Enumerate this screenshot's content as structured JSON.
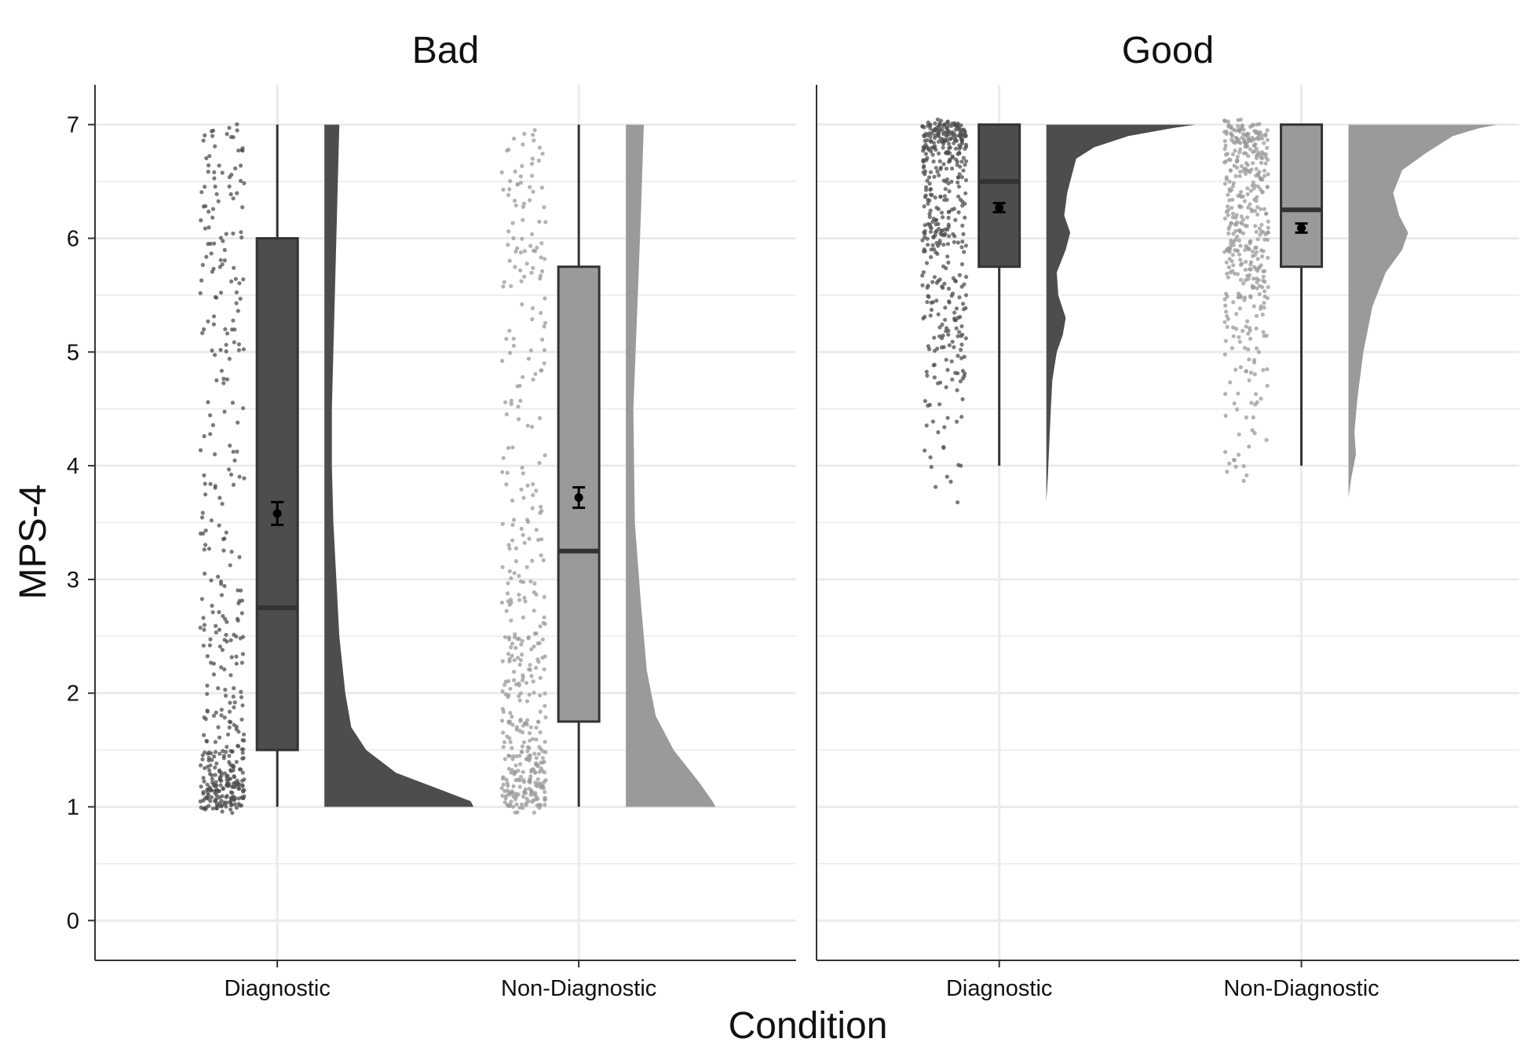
{
  "chart_data": {
    "type": "raincloud",
    "xlabel": "Condition",
    "ylabel": "MPS-4",
    "ylim": [
      -0.35,
      7.35
    ],
    "y_ticks": [
      0,
      1,
      2,
      3,
      4,
      5,
      6,
      7
    ],
    "categories": [
      "Diagnostic",
      "Non-Diagnostic"
    ],
    "grid": "on",
    "colors": {
      "Diagnostic": "#4d4d4d",
      "Non-Diagnostic": "#9a9a9a",
      "mean": "#000000",
      "grid": "#ebebeb"
    },
    "facets": [
      {
        "name": "Bad",
        "groups": [
          {
            "category": "Diagnostic",
            "box": {
              "min": 1,
              "q1": 1.5,
              "median": 2.75,
              "q3": 6,
              "max": 7
            },
            "mean": 3.58,
            "mean_ci": [
              3.48,
              3.68
            ],
            "density": [
              [
                1,
                1.0
              ],
              [
                1.05,
                0.98
              ],
              [
                1.15,
                0.78
              ],
              [
                1.3,
                0.48
              ],
              [
                1.5,
                0.28
              ],
              [
                1.7,
                0.18
              ],
              [
                2,
                0.14
              ],
              [
                2.5,
                0.1
              ],
              [
                3,
                0.08
              ],
              [
                3.5,
                0.06
              ],
              [
                4,
                0.05
              ],
              [
                4.5,
                0.05
              ],
              [
                5,
                0.06
              ],
              [
                5.5,
                0.07
              ],
              [
                6,
                0.08
              ],
              [
                6.5,
                0.09
              ],
              [
                7,
                0.1
              ]
            ]
          },
          {
            "category": "Non-Diagnostic",
            "box": {
              "min": 1,
              "q1": 1.75,
              "median": 3.25,
              "q3": 5.75,
              "max": 7
            },
            "mean": 3.72,
            "mean_ci": [
              3.63,
              3.81
            ],
            "density": [
              [
                1,
                0.6
              ],
              [
                1.05,
                0.58
              ],
              [
                1.2,
                0.5
              ],
              [
                1.5,
                0.32
              ],
              [
                1.8,
                0.2
              ],
              [
                2.2,
                0.14
              ],
              [
                2.8,
                0.1
              ],
              [
                3.5,
                0.06
              ],
              [
                4.5,
                0.05
              ],
              [
                5.5,
                0.08
              ],
              [
                6.2,
                0.1
              ],
              [
                7,
                0.12
              ]
            ]
          }
        ]
      },
      {
        "name": "Good",
        "groups": [
          {
            "category": "Diagnostic",
            "box": {
              "min": 4,
              "q1": 5.75,
              "median": 6.5,
              "q3": 7,
              "max": 7
            },
            "mean": 6.27,
            "mean_ci": [
              6.23,
              6.31
            ],
            "density": [
              [
                3.68,
                0
              ],
              [
                3.9,
                0.01
              ],
              [
                4.2,
                0.02
              ],
              [
                4.5,
                0.03
              ],
              [
                4.75,
                0.04
              ],
              [
                5,
                0.07
              ],
              [
                5.15,
                0.11
              ],
              [
                5.3,
                0.13
              ],
              [
                5.5,
                0.08
              ],
              [
                5.7,
                0.07
              ],
              [
                5.9,
                0.13
              ],
              [
                6.05,
                0.16
              ],
              [
                6.2,
                0.12
              ],
              [
                6.4,
                0.14
              ],
              [
                6.55,
                0.17
              ],
              [
                6.7,
                0.2
              ],
              [
                6.8,
                0.32
              ],
              [
                6.9,
                0.55
              ],
              [
                6.97,
                0.85
              ],
              [
                7,
                1.0
              ]
            ]
          },
          {
            "category": "Non-Diagnostic",
            "box": {
              "min": 4,
              "q1": 5.75,
              "median": 6.25,
              "q3": 7,
              "max": 7
            },
            "mean": 6.09,
            "mean_ci": [
              6.05,
              6.13
            ],
            "density": [
              [
                3.72,
                0
              ],
              [
                3.9,
                0.02
              ],
              [
                4.1,
                0.05
              ],
              [
                4.3,
                0.04
              ],
              [
                4.6,
                0.06
              ],
              [
                5,
                0.1
              ],
              [
                5.4,
                0.16
              ],
              [
                5.7,
                0.25
              ],
              [
                5.9,
                0.36
              ],
              [
                6.05,
                0.4
              ],
              [
                6.2,
                0.34
              ],
              [
                6.4,
                0.3
              ],
              [
                6.6,
                0.36
              ],
              [
                6.75,
                0.52
              ],
              [
                6.9,
                0.7
              ],
              [
                6.97,
                0.88
              ],
              [
                7,
                1.0
              ]
            ]
          }
        ]
      }
    ]
  }
}
